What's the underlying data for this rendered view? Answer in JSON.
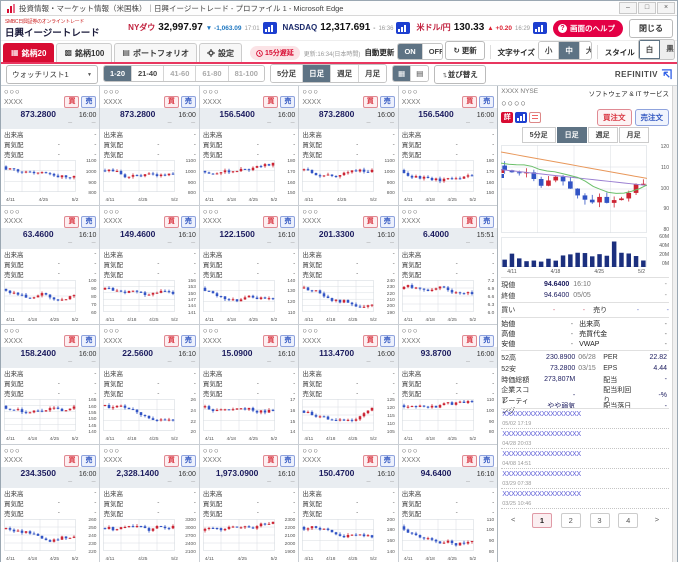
{
  "colors": {
    "accent_red": "#d80c32",
    "selected_slate": "#5e7384",
    "buy_red": "#d9333f",
    "sell_blue": "#2f55c0",
    "link_blue": "#5b5bd6",
    "price_navy": "#1b1b5e",
    "candle_up": "#cc2433",
    "candle_down": "#3254c5",
    "header_line": "#e8365f"
  },
  "window": {
    "title": "投資情報・マーケット情報（米国株）｜日興イージートレード - プロファイル 1 - Microsoft Edge",
    "minimize": "–",
    "maximize": "□",
    "close": "×"
  },
  "header": {
    "logo_tagline": "SMBC日興証券のオンライントレード",
    "logo_name": "日興イージートレード",
    "indices": [
      {
        "name": "NYダウ",
        "value": "32,997.97",
        "arrow": "▼",
        "change": "-1,063.09",
        "time": "17:01",
        "dir": "down"
      },
      {
        "name": "NASDAQ",
        "value": "12,317.691",
        "arrow": "",
        "change": "-",
        "time": "16:36",
        "dir": "flat"
      },
      {
        "name": "米ドル/円",
        "value": "130.33",
        "arrow": "▲",
        "change": "+0.20",
        "time": "16:29",
        "dir": "up"
      }
    ],
    "help_q": "?",
    "help_label": "画面のヘルプ",
    "close_label": "閉じる"
  },
  "toolbar": {
    "tabs": [
      {
        "label": "銘柄20"
      },
      {
        "label": "銘柄100"
      },
      {
        "label": "ポートフォリオ"
      },
      {
        "label": "設定"
      }
    ],
    "delay_badge": "15分遅延",
    "update_info": "更新:16:34(日本時間)",
    "auto_update": "自動更新",
    "on": "ON",
    "off": "OFF",
    "refresh": "更新",
    "refresh_icon": "↻",
    "font_size_label": "文字サイズ",
    "font_small": "小",
    "font_medium": "中",
    "font_large": "大",
    "style_label": "スタイル",
    "style_white": "白",
    "style_black": "黒"
  },
  "watchlist_bar": {
    "list_name": "ウォッチリスト1",
    "ranges": [
      "1-20",
      "21-40",
      "41-60",
      "61-80",
      "81-100"
    ],
    "periods": [
      "5分足",
      "日足",
      "週足",
      "月足"
    ],
    "sort": "並び替え",
    "brand": "REFINITIV"
  },
  "tile_labels": {
    "volume": "出来高",
    "bid": "買気配",
    "ask": "売気配",
    "buy": "買",
    "sell": "売",
    "dash": "-",
    "masked": "－"
  },
  "tiles": [
    {
      "name": "○○○",
      "ticker": "XXXX",
      "price": "873.2800",
      "time": "16:00",
      "y": [
        "1100",
        "1000",
        "900",
        "800"
      ],
      "x": [
        "4/11",
        "4/25",
        "5/2"
      ]
    },
    {
      "name": "○○○",
      "ticker": "XXXX",
      "price": "873.2800",
      "time": "16:00",
      "y": [
        "1100",
        "1000",
        "900",
        "800"
      ],
      "x": [
        "4/11",
        "4/25",
        "5/2"
      ]
    },
    {
      "name": "○○○",
      "ticker": "XXXX",
      "price": "156.5400",
      "time": "16:00",
      "y": [
        "180",
        "170",
        "160",
        "150"
      ],
      "x": [
        "4/11",
        "4/18",
        "4/25",
        "5/2"
      ]
    },
    {
      "name": "○○○",
      "ticker": "XXXX",
      "price": "873.2800",
      "time": "16:00",
      "y": [
        "1100",
        "1000",
        "900",
        "800"
      ],
      "x": [
        "4/11",
        "4/25",
        "5/2"
      ]
    },
    {
      "name": "○○○",
      "ticker": "XXXX",
      "price": "156.5400",
      "time": "16:00",
      "y": [
        "180",
        "170",
        "160",
        "150"
      ],
      "x": [
        "4/11",
        "4/18",
        "4/25",
        "5/2"
      ]
    },
    {
      "name": "○○○",
      "ticker": "XXXX",
      "price": "63.4600",
      "time": "16:10",
      "y": [
        "100",
        "90",
        "80",
        "70",
        "60"
      ],
      "x": [
        "4/11",
        "4/18",
        "4/25",
        "5/2"
      ]
    },
    {
      "name": "○○○",
      "ticker": "XXXX",
      "price": "149.4600",
      "time": "16:10",
      "y": [
        "156",
        "153",
        "150",
        "147",
        "144",
        "141"
      ],
      "x": [
        "4/11",
        "4/18",
        "4/25",
        "5/2"
      ]
    },
    {
      "name": "○○○",
      "ticker": "XXXX",
      "price": "122.1500",
      "time": "16:10",
      "y": [
        "140",
        "130",
        "120",
        "110"
      ],
      "x": [
        "4/11",
        "4/18",
        "4/25",
        "5/2"
      ]
    },
    {
      "name": "○○○",
      "ticker": "XXXX",
      "price": "201.3300",
      "time": "16:10",
      "y": [
        "240",
        "230",
        "220",
        "210",
        "200",
        "190"
      ],
      "x": [
        "4/11",
        "4/18",
        "4/25",
        "5/2"
      ]
    },
    {
      "name": "○○○",
      "ticker": "XXXX",
      "price": "6.4000",
      "time": "15:51",
      "y": [
        "7.2",
        "6.9",
        "6.6",
        "6.3",
        "6.0"
      ],
      "x": [
        "4/11",
        "4/18",
        "4/25",
        "5/2"
      ]
    },
    {
      "name": "○○○",
      "ticker": "XXXX",
      "price": "158.2400",
      "time": "16:00",
      "y": [
        "165",
        "160",
        "155",
        "150",
        "145",
        "140"
      ],
      "x": [
        "4/11",
        "4/18",
        "4/25",
        "5/2"
      ]
    },
    {
      "name": "○○○",
      "ticker": "XXXX",
      "price": "22.5600",
      "time": "16:10",
      "y": [
        "26",
        "24",
        "22",
        "20"
      ],
      "x": [
        "4/11",
        "4/18",
        "4/25",
        "5/2"
      ]
    },
    {
      "name": "○○○",
      "ticker": "XXXX",
      "price": "15.0900",
      "time": "16:10",
      "y": [
        "17",
        "16",
        "15",
        "14"
      ],
      "x": [
        "4/11",
        "4/18",
        "4/25",
        "5/2"
      ]
    },
    {
      "name": "○○○",
      "ticker": "XXXX",
      "price": "113.4700",
      "time": "16:00",
      "y": [
        "125",
        "120",
        "115",
        "110",
        "105"
      ],
      "x": [
        "4/11",
        "4/18",
        "4/25",
        "5/2"
      ]
    },
    {
      "name": "○○○",
      "ticker": "XXXX",
      "price": "93.8700",
      "time": "16:00",
      "y": [
        "110",
        "100",
        "90",
        "80"
      ],
      "x": [
        "4/11",
        "4/18",
        "4/25",
        "5/2"
      ]
    },
    {
      "name": "○○○",
      "ticker": "XXXX",
      "price": "234.3500",
      "time": "16:00",
      "y": [
        "260",
        "250",
        "240",
        "230",
        "220"
      ],
      "x": [
        "4/11",
        "4/18",
        "4/25",
        "5/2"
      ]
    },
    {
      "name": "○○○",
      "ticker": "XXXX",
      "price": "2,328.1400",
      "time": "16:00",
      "y": [
        "3300",
        "3000",
        "2700",
        "2400",
        "2100"
      ],
      "x": [
        "4/11",
        "4/25",
        "5/2"
      ]
    },
    {
      "name": "○○○",
      "ticker": "XXXX",
      "price": "1,973.0900",
      "time": "16:10",
      "y": [
        "2300",
        "2200",
        "2100",
        "2000",
        "1900"
      ],
      "x": [
        "4/11",
        "4/25",
        "5/2"
      ]
    },
    {
      "name": "○○○",
      "ticker": "XXXX",
      "price": "150.4700",
      "time": "16:10",
      "y": [
        "200",
        "180",
        "160",
        "140"
      ],
      "x": [
        "4/11",
        "4/18",
        "4/25",
        "5/2"
      ]
    },
    {
      "name": "○○○",
      "ticker": "XXXX",
      "price": "94.6400",
      "time": "16:10",
      "y": [
        "110",
        "100",
        "90",
        "80"
      ],
      "x": [
        "4/11",
        "4/18",
        "4/25",
        "5/2"
      ]
    }
  ],
  "detail": {
    "ticker": "XXXX",
    "exchange": "NYSE",
    "sector": "ソフトウェア & IT サービス",
    "name": "○○○○",
    "icon_detail": "詳",
    "buy_order": "買注文",
    "sell_order": "売注文",
    "tabs": [
      "5分足",
      "日足",
      "週足",
      "月足"
    ],
    "chart": {
      "y_labels": [
        "120",
        "110",
        "100",
        "90",
        "80"
      ],
      "vol_labels": [
        "60M",
        "40M",
        "20M",
        "0M"
      ],
      "x_labels": [
        "4/11",
        "4/18",
        "4/25",
        "5/2"
      ]
    },
    "quote_a": [
      {
        "label": "現値",
        "value": "94.6400",
        "sub": "16:10",
        "right": "-",
        "strong": true
      },
      {
        "label": "終値",
        "value": "94.6400",
        "sub": "05/05",
        "right": "-",
        "strong": false
      }
    ],
    "quote_b": {
      "l1": "買い",
      "v1": "-",
      "v2": "-",
      "l2": "売り",
      "v3": "-",
      "v4": "-"
    },
    "quote_c": [
      {
        "l1": "始値",
        "v1": "-",
        "l2": "出来高",
        "v2": "-"
      },
      {
        "l1": "高値",
        "v1": "-",
        "l2": "売買代金",
        "v2": "-"
      },
      {
        "l1": "安値",
        "v1": "-",
        "l2": "VWAP",
        "v2": "-"
      }
    ],
    "quote_d": [
      {
        "l1": "52高",
        "v1": "230.8900",
        "d1": "06/28",
        "l2": "PER",
        "v2": "22.82"
      },
      {
        "l1": "52安",
        "v1": "73.2800",
        "d1": "03/15",
        "l2": "EPS",
        "v2": "4.44"
      },
      {
        "l1": "時価総額",
        "v1": "273,807M",
        "d1": "",
        "l2": "配当",
        "v2": "-"
      },
      {
        "l1": "企業スコア",
        "v1": "-",
        "d1": "",
        "l2": "配当利回り",
        "v2": "-%"
      },
      {
        "l1": "レーティング",
        "v1": "やや弱気",
        "d1": "",
        "l2": "配当落日",
        "v2": "-"
      }
    ],
    "news": {
      "items": [
        {
          "title": "XXXXXXXXXXXXXXXXXX",
          "date": "05/02 17:19"
        },
        {
          "title": "XXXXXXXXXXXXXXXXXX",
          "date": "04/28 20:03"
        },
        {
          "title": "XXXXXXXXXXXXXXXXXX",
          "date": "04/08 14:51"
        },
        {
          "title": "XXXXXXXXXXXXXXXXXX",
          "date": "03/29 07:38"
        },
        {
          "title": "XXXXXXXXXXXXXXXXXX",
          "date": "03/25 10:46"
        }
      ],
      "pages": [
        "1",
        "2",
        "3",
        "4"
      ],
      "active_page": "1",
      "prev": "<",
      "next": ">"
    }
  }
}
